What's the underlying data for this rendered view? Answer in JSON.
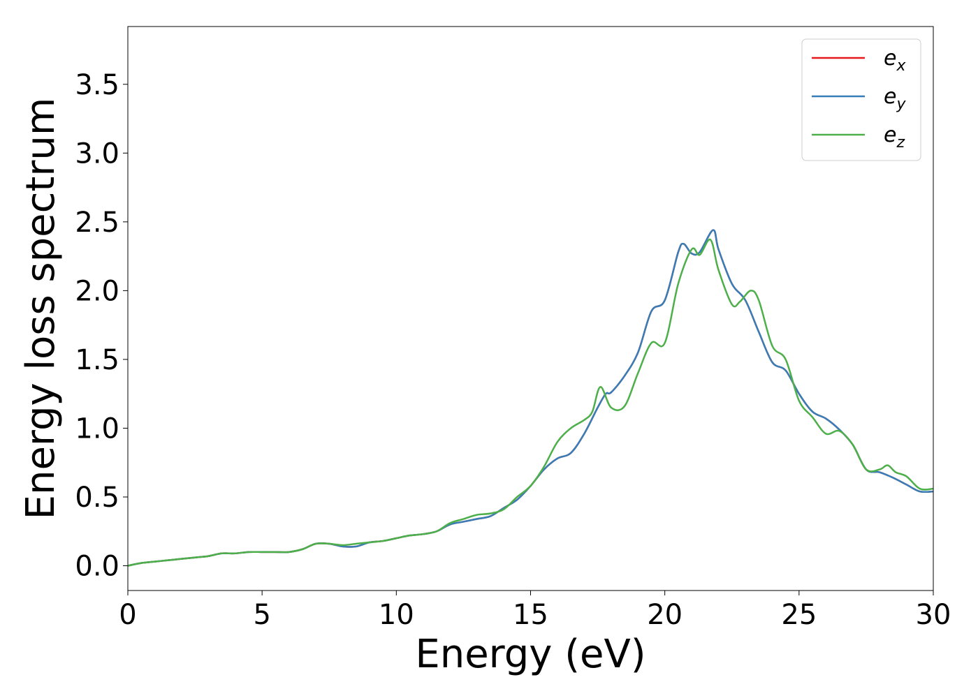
{
  "chart_data": {
    "type": "line",
    "xlabel": "Energy (eV)",
    "ylabel": "Energy loss spectrum",
    "xlim": [
      0,
      30
    ],
    "ylim": [
      -0.18,
      3.92
    ],
    "xticks": [
      0,
      5,
      10,
      15,
      20,
      25,
      30
    ],
    "xtick_labels": [
      "0",
      "5",
      "10",
      "15",
      "20",
      "25",
      "30"
    ],
    "yticks": [
      0.0,
      0.5,
      1.0,
      1.5,
      2.0,
      2.5,
      3.0,
      3.5
    ],
    "ytick_labels": [
      "0.0",
      "0.5",
      "1.0",
      "1.5",
      "2.0",
      "2.5",
      "3.0",
      "3.5"
    ],
    "grid": false,
    "legend_position": "top-right",
    "legend": [
      {
        "base": "e",
        "sub": "x",
        "color": "#e41a1c"
      },
      {
        "base": "e",
        "sub": "y",
        "color": "#377eb8"
      },
      {
        "base": "e",
        "sub": "z",
        "color": "#4daf4a"
      }
    ],
    "series": [
      {
        "color": "#e41a1c",
        "x": [
          0,
          0.5,
          1,
          1.5,
          2,
          2.5,
          3,
          3.5,
          4,
          4.5,
          5,
          5.5,
          6,
          6.5,
          7,
          7.5,
          8,
          8.5,
          9,
          9.5,
          10,
          10.5,
          11,
          11.5,
          12,
          12.5,
          13,
          13.5,
          14,
          14.5,
          15,
          15.5,
          16,
          16.5,
          17,
          17.5,
          17.8,
          18,
          18.5,
          19,
          19.5,
          20,
          20.5,
          20.7,
          21,
          21.3,
          21.8,
          22,
          22.5,
          23,
          23.5,
          24,
          24.5,
          25,
          25.5,
          26,
          26.5,
          27,
          27.5,
          28,
          28.5,
          29,
          29.5,
          30
        ],
        "y": [
          0,
          0.02,
          0.03,
          0.04,
          0.05,
          0.06,
          0.07,
          0.09,
          0.09,
          0.1,
          0.1,
          0.1,
          0.1,
          0.12,
          0.16,
          0.16,
          0.14,
          0.14,
          0.17,
          0.18,
          0.2,
          0.22,
          0.23,
          0.25,
          0.3,
          0.32,
          0.34,
          0.36,
          0.42,
          0.48,
          0.58,
          0.7,
          0.78,
          0.82,
          0.96,
          1.15,
          1.25,
          1.26,
          1.38,
          1.55,
          1.85,
          1.93,
          2.28,
          2.34,
          2.27,
          2.28,
          2.44,
          2.3,
          2.05,
          1.93,
          1.7,
          1.48,
          1.42,
          1.25,
          1.12,
          1.07,
          0.99,
          0.88,
          0.7,
          0.68,
          0.64,
          0.59,
          0.54,
          0.54
        ]
      },
      {
        "color": "#377eb8",
        "x": [
          0,
          0.5,
          1,
          1.5,
          2,
          2.5,
          3,
          3.5,
          4,
          4.5,
          5,
          5.5,
          6,
          6.5,
          7,
          7.5,
          8,
          8.5,
          9,
          9.5,
          10,
          10.5,
          11,
          11.5,
          12,
          12.5,
          13,
          13.5,
          14,
          14.5,
          15,
          15.5,
          16,
          16.5,
          17,
          17.5,
          17.8,
          18,
          18.5,
          19,
          19.5,
          20,
          20.5,
          20.7,
          21,
          21.3,
          21.8,
          22,
          22.5,
          23,
          23.5,
          24,
          24.5,
          25,
          25.5,
          26,
          26.5,
          27,
          27.5,
          28,
          28.5,
          29,
          29.5,
          30
        ],
        "y": [
          0,
          0.02,
          0.03,
          0.04,
          0.05,
          0.06,
          0.07,
          0.09,
          0.09,
          0.1,
          0.1,
          0.1,
          0.1,
          0.12,
          0.16,
          0.16,
          0.14,
          0.14,
          0.17,
          0.18,
          0.2,
          0.22,
          0.23,
          0.25,
          0.3,
          0.32,
          0.34,
          0.36,
          0.42,
          0.48,
          0.58,
          0.7,
          0.78,
          0.82,
          0.96,
          1.15,
          1.25,
          1.26,
          1.38,
          1.55,
          1.85,
          1.93,
          2.28,
          2.34,
          2.27,
          2.28,
          2.44,
          2.3,
          2.05,
          1.93,
          1.7,
          1.48,
          1.42,
          1.25,
          1.12,
          1.07,
          0.99,
          0.88,
          0.7,
          0.68,
          0.64,
          0.59,
          0.54,
          0.54
        ]
      },
      {
        "color": "#4daf4a",
        "x": [
          0,
          0.5,
          1,
          1.5,
          2,
          2.5,
          3,
          3.5,
          4,
          4.5,
          5,
          5.5,
          6,
          6.5,
          7,
          7.5,
          8,
          8.5,
          9,
          9.5,
          10,
          10.5,
          11,
          11.5,
          12,
          12.5,
          13,
          13.5,
          14,
          14.5,
          15,
          15.5,
          16,
          16.5,
          17,
          17.3,
          17.6,
          18,
          18.5,
          19,
          19.5,
          20,
          20.5,
          21,
          21.3,
          21.7,
          22,
          22.5,
          22.8,
          23.2,
          23.5,
          24,
          24.5,
          25,
          25.5,
          26,
          26.5,
          27,
          27.5,
          28,
          28.3,
          28.6,
          29,
          29.5,
          30
        ],
        "y": [
          0,
          0.02,
          0.03,
          0.04,
          0.05,
          0.06,
          0.07,
          0.09,
          0.09,
          0.1,
          0.1,
          0.1,
          0.1,
          0.12,
          0.16,
          0.16,
          0.15,
          0.16,
          0.17,
          0.18,
          0.2,
          0.22,
          0.23,
          0.25,
          0.31,
          0.34,
          0.37,
          0.38,
          0.41,
          0.5,
          0.58,
          0.72,
          0.9,
          1.0,
          1.06,
          1.12,
          1.3,
          1.15,
          1.16,
          1.4,
          1.62,
          1.62,
          2.05,
          2.3,
          2.26,
          2.37,
          2.15,
          1.9,
          1.92,
          2.0,
          1.93,
          1.6,
          1.5,
          1.2,
          1.08,
          0.96,
          0.98,
          0.88,
          0.7,
          0.7,
          0.73,
          0.68,
          0.65,
          0.56,
          0.56
        ]
      }
    ]
  }
}
